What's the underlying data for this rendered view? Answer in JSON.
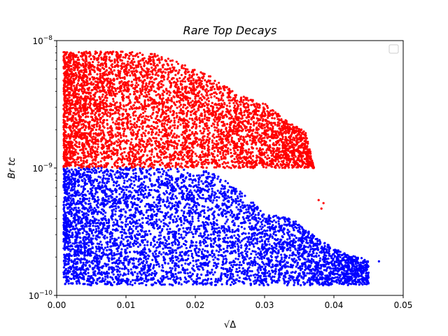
{
  "chart_data": {
    "type": "scatter",
    "title": "Rare Top Decays",
    "xlabel": "√Δ",
    "ylabel": "Br tc",
    "xlim": [
      0.0,
      0.05
    ],
    "ylim": [
      1e-10,
      1e-08
    ],
    "yscale": "log",
    "grid": false,
    "legend_placement": "top-right",
    "x_ticks": [
      0.0,
      0.01,
      0.02,
      0.03,
      0.04,
      0.05
    ],
    "x_tick_labels": [
      "0.00",
      "0.01",
      "0.02",
      "0.03",
      "0.04",
      "0.05"
    ],
    "y_ticks": [
      1e-10,
      1e-09,
      1e-08
    ],
    "y_tick_labels": [
      {
        "base": "10",
        "exp": "−10"
      },
      {
        "base": "10",
        "exp": "−9"
      },
      {
        "base": "10",
        "exp": "−8"
      }
    ],
    "series": [
      {
        "color": "#ff0000",
        "y_range": [
          1e-09,
          8.3e-09
        ],
        "envelope": [
          {
            "x": 0.001,
            "y_max": 8.2e-09
          },
          {
            "x": 0.01,
            "y_max": 8.2e-09
          },
          {
            "x": 0.014,
            "y_max": 8e-09
          },
          {
            "x": 0.018,
            "y_max": 6.6e-09
          },
          {
            "x": 0.022,
            "y_max": 5.4e-09
          },
          {
            "x": 0.026,
            "y_max": 3.8e-09
          },
          {
            "x": 0.03,
            "y_max": 3.2e-09
          },
          {
            "x": 0.033,
            "y_max": 2.4e-09
          },
          {
            "x": 0.036,
            "y_max": 1.9e-09
          },
          {
            "x": 0.038,
            "y_max": 6e-10
          },
          {
            "x": 0.039,
            "y_max": 5.2e-10
          }
        ],
        "outliers": [
          {
            "x": 0.0378,
            "y": 5.6e-10
          },
          {
            "x": 0.0385,
            "y": 5.3e-10
          },
          {
            "x": 0.0382,
            "y": 4.8e-10
          },
          {
            "x": 0.035,
            "y": 1.05e-09
          }
        ]
      },
      {
        "color": "#0000ff",
        "y_range": [
          1.2e-10,
          1e-09
        ],
        "envelope": [
          {
            "x": 0.001,
            "y_max": 1e-09
          },
          {
            "x": 0.015,
            "y_max": 1e-09
          },
          {
            "x": 0.022,
            "y_max": 9.5e-10
          },
          {
            "x": 0.026,
            "y_max": 7e-10
          },
          {
            "x": 0.03,
            "y_max": 4.4e-10
          },
          {
            "x": 0.034,
            "y_max": 4e-10
          },
          {
            "x": 0.038,
            "y_max": 2.7e-10
          },
          {
            "x": 0.042,
            "y_max": 2.1e-10
          },
          {
            "x": 0.045,
            "y_max": 1.9e-10
          }
        ],
        "outliers": [
          {
            "x": 0.0465,
            "y": 1.85e-10
          },
          {
            "x": 0.045,
            "y": 1.25e-10
          },
          {
            "x": 0.0442,
            "y": 1.28e-10
          },
          {
            "x": 0.043,
            "y": 1.45e-10
          },
          {
            "x": 0.041,
            "y": 1.6e-10
          }
        ]
      }
    ]
  }
}
